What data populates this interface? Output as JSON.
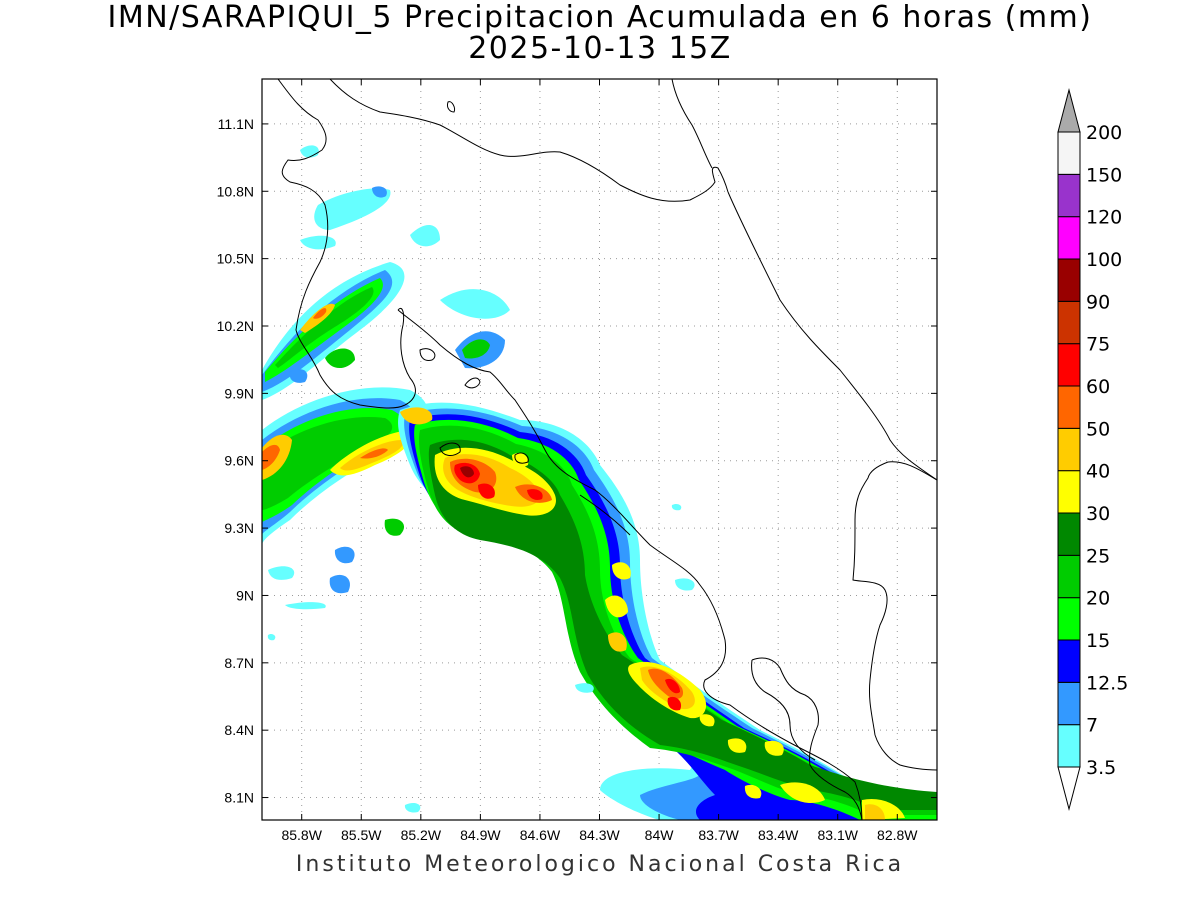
{
  "title": {
    "line1": "IMN/SARAPIQUI_5 Precipitacion Acumulada en 6 horas (mm)",
    "line2": "2025-10-13 15Z"
  },
  "footer": "Instituto Meteorologico Nacional Costa Rica",
  "map": {
    "lon_range": [
      -86.0,
      -82.6
    ],
    "lat_range": [
      8.0,
      11.3
    ],
    "lon_ticks": [
      "85.8W",
      "85.5W",
      "85.2W",
      "84.9W",
      "84.6W",
      "84.3W",
      "84W",
      "83.7W",
      "83.4W",
      "83.1W",
      "82.8W"
    ],
    "lat_ticks": [
      "11.1N",
      "10.8N",
      "10.5N",
      "10.2N",
      "9.9N",
      "9.6N",
      "9.3N",
      "9N",
      "8.7N",
      "8.4N",
      "8.1N"
    ],
    "grid": true
  },
  "colorbar": {
    "labels": [
      "3.5",
      "7",
      "12.5",
      "15",
      "20",
      "25",
      "30",
      "40",
      "50",
      "60",
      "75",
      "90",
      "100",
      "120",
      "150",
      "200"
    ],
    "colors": [
      "#66ffff",
      "#3399ff",
      "#0000ff",
      "#00ff00",
      "#00cc00",
      "#008800",
      "#ffff00",
      "#ffcc00",
      "#ff6600",
      "#ff0000",
      "#cc3300",
      "#990000",
      "#ff00ff",
      "#9933cc",
      "#f5f5f5"
    ],
    "upper_arrow_color": "#aaaaaa",
    "lower_arrow_color": "#ffffff"
  }
}
